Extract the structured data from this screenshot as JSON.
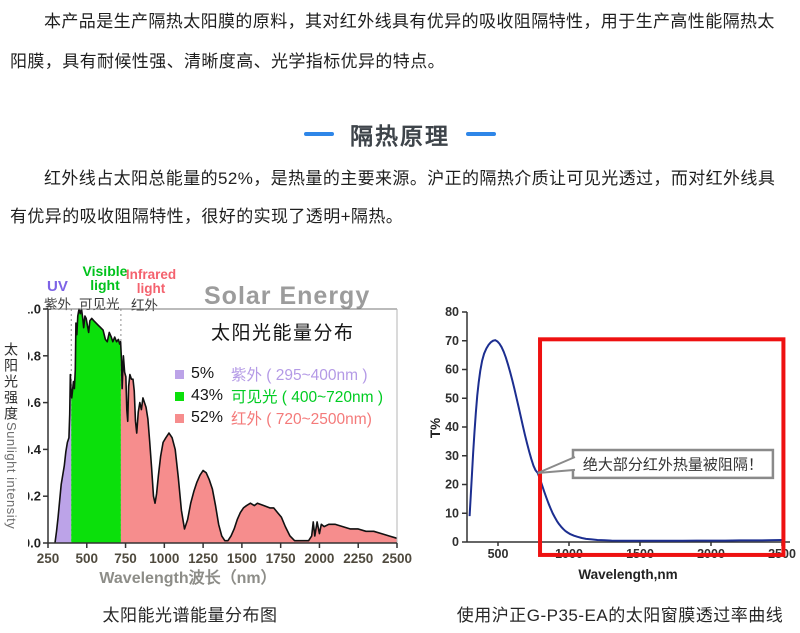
{
  "intro": {
    "text": "本产品是生产隔热太阳膜的原料，其对红外线具有优异的吸收阻隔特性，用于生产高性能隔热太阳膜，具有耐候性强、清晰度高、光学指标优异的特点。"
  },
  "section": {
    "title": "隔热原理",
    "accent_color": "#2e86e8",
    "title_color": "#3e444a",
    "paragraph": "红外线占太阳总能量的52%，是热量的主要来源。沪正的隔热介质让可见光透过，而对红外线具有优异的吸收阻隔特性，很好的实现了透明+隔热。"
  },
  "captions": {
    "left": "太阳能光谱能量分布图",
    "right": "使用沪正G-P35-EA的太阳窗膜透过率曲线"
  },
  "chart_data": [
    {
      "type": "area",
      "title": "Solar Energy",
      "subtitle": "太阳光能量分布",
      "xlabel": "Wavelength波长（nm）",
      "ylabel_zh": "太阳光强度",
      "ylabel_en": "Sunlight intensity",
      "xlim": [
        250,
        2500
      ],
      "ylim": [
        0,
        1.0
      ],
      "x_ticks": [
        250,
        500,
        750,
        1000,
        1250,
        1500,
        1750,
        2000,
        2250,
        2500
      ],
      "y_ticks": [
        0.0,
        0.2,
        0.4,
        0.6,
        0.8,
        1.0
      ],
      "title_color": "#9c9c9c",
      "grid": false,
      "legend_position": "center-right",
      "bands": [
        {
          "label_en": "UV",
          "label_zh": "紫外",
          "percent": "5%",
          "legend": "紫外 ( 295~400nm )",
          "range": [
            295,
            400
          ],
          "fill": "#bca3e8",
          "label_color": "#7d63e6",
          "legend_color": "#b49ae6"
        },
        {
          "label_en": "Visible light",
          "label_zh": "可见光",
          "percent": "43%",
          "legend": "可见光 ( 400~720nm )",
          "range": [
            400,
            720
          ],
          "fill": "#0be00b",
          "label_color": "#00c21c",
          "legend_color": "#00cc22"
        },
        {
          "label_en": "Infrared light",
          "label_zh": "红外",
          "percent": "52%",
          "legend": "红外 ( 720~2500nm)",
          "range": [
            720,
            2500
          ],
          "fill": "#f68d8d",
          "label_color": "#f4626e",
          "legend_color": "#f47a7a"
        }
      ],
      "envelope": [
        [
          295,
          0
        ],
        [
          305,
          0.05
        ],
        [
          315,
          0.11
        ],
        [
          325,
          0.18
        ],
        [
          335,
          0.25
        ],
        [
          345,
          0.29
        ],
        [
          355,
          0.33
        ],
        [
          365,
          0.39
        ],
        [
          375,
          0.43
        ],
        [
          385,
          0.45
        ],
        [
          390,
          0.55
        ],
        [
          394,
          0.72
        ],
        [
          398,
          0.66
        ],
        [
          403,
          0.62
        ],
        [
          408,
          0.65
        ],
        [
          414,
          0.69
        ],
        [
          420,
          0.66
        ],
        [
          426,
          0.74
        ],
        [
          430,
          0.94
        ],
        [
          436,
          0.89
        ],
        [
          442,
          0.97
        ],
        [
          450,
          1.0
        ],
        [
          458,
          0.98
        ],
        [
          466,
          1.0
        ],
        [
          474,
          0.96
        ],
        [
          480,
          0.92
        ],
        [
          488,
          0.97
        ],
        [
          496,
          0.96
        ],
        [
          504,
          0.93
        ],
        [
          512,
          0.9
        ],
        [
          520,
          0.95
        ],
        [
          532,
          0.96
        ],
        [
          545,
          0.95
        ],
        [
          560,
          0.94
        ],
        [
          575,
          0.93
        ],
        [
          590,
          0.92
        ],
        [
          605,
          0.91
        ],
        [
          620,
          0.87
        ],
        [
          632,
          0.86
        ],
        [
          645,
          0.9
        ],
        [
          658,
          0.88
        ],
        [
          668,
          0.86
        ],
        [
          680,
          0.88
        ],
        [
          692,
          0.86
        ],
        [
          704,
          0.87
        ],
        [
          712,
          0.85
        ],
        [
          718,
          0.86
        ],
        [
          724,
          0.78
        ],
        [
          728,
          0.66
        ],
        [
          736,
          0.8
        ],
        [
          744,
          0.73
        ],
        [
          752,
          0.71
        ],
        [
          758,
          0.57
        ],
        [
          764,
          0.52
        ],
        [
          770,
          0.67
        ],
        [
          778,
          0.72
        ],
        [
          788,
          0.7
        ],
        [
          798,
          0.7
        ],
        [
          806,
          0.65
        ],
        [
          814,
          0.52
        ],
        [
          822,
          0.47
        ],
        [
          832,
          0.56
        ],
        [
          842,
          0.6
        ],
        [
          852,
          0.57
        ],
        [
          862,
          0.62
        ],
        [
          872,
          0.6
        ],
        [
          882,
          0.58
        ],
        [
          894,
          0.53
        ],
        [
          906,
          0.43
        ],
        [
          918,
          0.32
        ],
        [
          930,
          0.2
        ],
        [
          940,
          0.17
        ],
        [
          950,
          0.21
        ],
        [
          962,
          0.29
        ],
        [
          976,
          0.37
        ],
        [
          992,
          0.43
        ],
        [
          1010,
          0.45
        ],
        [
          1030,
          0.47
        ],
        [
          1050,
          0.45
        ],
        [
          1070,
          0.4
        ],
        [
          1090,
          0.28
        ],
        [
          1110,
          0.14
        ],
        [
          1130,
          0.06
        ],
        [
          1150,
          0.1
        ],
        [
          1170,
          0.17
        ],
        [
          1190,
          0.22
        ],
        [
          1210,
          0.26
        ],
        [
          1230,
          0.29
        ],
        [
          1250,
          0.31
        ],
        [
          1270,
          0.3
        ],
        [
          1290,
          0.27
        ],
        [
          1310,
          0.23
        ],
        [
          1330,
          0.16
        ],
        [
          1350,
          0.08
        ],
        [
          1370,
          0.03
        ],
        [
          1390,
          0.01
        ],
        [
          1410,
          0.01
        ],
        [
          1430,
          0.03
        ],
        [
          1450,
          0.06
        ],
        [
          1470,
          0.1
        ],
        [
          1490,
          0.13
        ],
        [
          1510,
          0.15
        ],
        [
          1530,
          0.16
        ],
        [
          1555,
          0.17
        ],
        [
          1580,
          0.16
        ],
        [
          1600,
          0.17
        ],
        [
          1640,
          0.16
        ],
        [
          1680,
          0.15
        ],
        [
          1705,
          0.15
        ],
        [
          1730,
          0.13
        ],
        [
          1755,
          0.11
        ],
        [
          1780,
          0.07
        ],
        [
          1810,
          0.03
        ],
        [
          1840,
          0.01
        ],
        [
          1870,
          0.01
        ],
        [
          1900,
          0.01
        ],
        [
          1930,
          0.01
        ],
        [
          1950,
          0.03
        ],
        [
          1960,
          0.09
        ],
        [
          1970,
          0.03
        ],
        [
          1985,
          0.09
        ],
        [
          2000,
          0.04
        ],
        [
          2012,
          0.08
        ],
        [
          2030,
          0.07
        ],
        [
          2060,
          0.08
        ],
        [
          2100,
          0.08
        ],
        [
          2150,
          0.07
        ],
        [
          2200,
          0.06
        ],
        [
          2250,
          0.06
        ],
        [
          2300,
          0.05
        ],
        [
          2350,
          0.05
        ],
        [
          2400,
          0.04
        ],
        [
          2450,
          0.03
        ],
        [
          2500,
          0.02
        ]
      ]
    },
    {
      "type": "line",
      "xlabel": "Wavelength,nm",
      "ylabel": "T%",
      "xlim": [
        290,
        2560
      ],
      "ylim": [
        0,
        80
      ],
      "x_ticks": [
        500,
        1000,
        1500,
        2000,
        2500
      ],
      "y_ticks": [
        0,
        10,
        20,
        30,
        40,
        50,
        60,
        70,
        80
      ],
      "grid": false,
      "line_color": "#1c2e90",
      "series": [
        {
          "name": "G-P35-EA太阳窗膜透过率",
          "points": [
            [
              300,
              9
            ],
            [
              308,
              16
            ],
            [
              316,
              23
            ],
            [
              325,
              31
            ],
            [
              334,
              38
            ],
            [
              344,
              45
            ],
            [
              354,
              51
            ],
            [
              364,
              55.5
            ],
            [
              375,
              59.5
            ],
            [
              388,
              63
            ],
            [
              402,
              65.5
            ],
            [
              418,
              67.3
            ],
            [
              434,
              68.6
            ],
            [
              450,
              69.5
            ],
            [
              465,
              70
            ],
            [
              480,
              70.2
            ],
            [
              495,
              69.8
            ],
            [
              510,
              69
            ],
            [
              525,
              67.8
            ],
            [
              540,
              66.2
            ],
            [
              555,
              64.2
            ],
            [
              570,
              61.8
            ],
            [
              585,
              59.2
            ],
            [
              600,
              56.4
            ],
            [
              615,
              53.4
            ],
            [
              630,
              50.2
            ],
            [
              645,
              47
            ],
            [
              660,
              43.7
            ],
            [
              675,
              40.4
            ],
            [
              690,
              37.2
            ],
            [
              705,
              34.2
            ],
            [
              720,
              31.4
            ],
            [
              735,
              28.8
            ],
            [
              750,
              26.5
            ],
            [
              765,
              24.9
            ],
            [
              780,
              24
            ],
            [
              795,
              22
            ],
            [
              810,
              19.8
            ],
            [
              825,
              17.6
            ],
            [
              840,
              15.5
            ],
            [
              855,
              13.5
            ],
            [
              870,
              11.7
            ],
            [
              885,
              10
            ],
            [
              900,
              8.6
            ],
            [
              915,
              7.3
            ],
            [
              930,
              6.2
            ],
            [
              945,
              5.3
            ],
            [
              960,
              4.5
            ],
            [
              975,
              3.8
            ],
            [
              990,
              3.3
            ],
            [
              1010,
              2.7
            ],
            [
              1035,
              2.2
            ],
            [
              1060,
              1.8
            ],
            [
              1090,
              1.4
            ],
            [
              1120,
              1.1
            ],
            [
              1160,
              0.9
            ],
            [
              1200,
              0.7
            ],
            [
              1250,
              0.6
            ],
            [
              1300,
              0.5
            ],
            [
              1400,
              0.45
            ],
            [
              1500,
              0.45
            ],
            [
              1600,
              0.45
            ],
            [
              1700,
              0.45
            ],
            [
              1800,
              0.45
            ],
            [
              1900,
              0.5
            ],
            [
              2000,
              0.5
            ],
            [
              2100,
              0.5
            ],
            [
              2200,
              0.55
            ],
            [
              2300,
              0.55
            ],
            [
              2400,
              0.6
            ],
            [
              2500,
              0.7
            ]
          ]
        }
      ],
      "annotation": {
        "text": "绝大部分红外热量被阻隔！",
        "target_x": 780,
        "target_y": 24,
        "box_x": [
          1028,
          2436
        ],
        "box_y": [
          22.3,
          32
        ],
        "border_color": "#8a8a8a"
      },
      "highlight_box": {
        "color": "#ee1111",
        "x0": 796,
        "x1": 2510,
        "y0": -4.5,
        "y1": 70.5
      }
    }
  ]
}
